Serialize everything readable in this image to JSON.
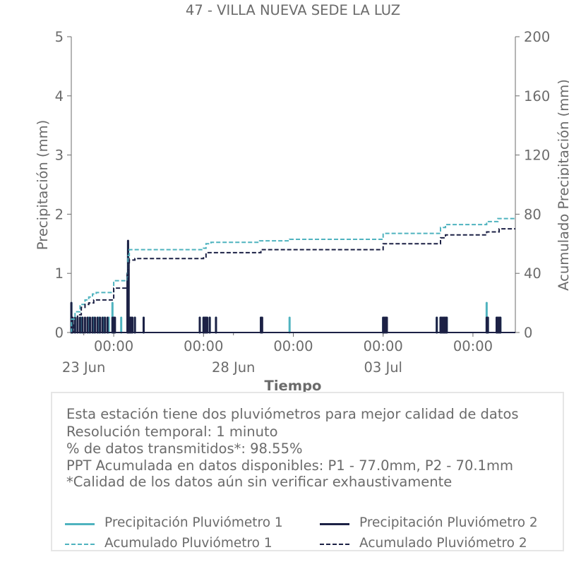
{
  "colors": {
    "p1": "#4fb3bf",
    "p2": "#1c2145",
    "text": "#6b6b6b",
    "axis": "#6b6b6b",
    "box_border": "#e6e6e6"
  },
  "chart_data": {
    "type": "line",
    "title": "47 - VILLA NUEVA SEDE LA LUZ",
    "xlabel": "Tiempo",
    "ylabel": "Precipitación (mm)",
    "y2label": "Acumulado Precipitación (mm)",
    "ylim": [
      0,
      5
    ],
    "y2lim": [
      0,
      200
    ],
    "yticks": [
      0,
      1,
      2,
      3,
      4,
      5
    ],
    "y2ticks": [
      0,
      40,
      80,
      120,
      160,
      200
    ],
    "xlim": [
      "2024-06-22T14:00",
      "2024-07-07T10:00"
    ],
    "x_time_ticks": [
      {
        "t": "2024-06-24T00:00",
        "label": "00:00"
      },
      {
        "t": "2024-06-27T00:00",
        "label": "00:00"
      },
      {
        "t": "2024-06-30T00:00",
        "label": "00:00"
      },
      {
        "t": "2024-07-03T00:00",
        "label": "00:00"
      },
      {
        "t": "2024-07-06T00:00",
        "label": "00:00"
      }
    ],
    "x_date_ticks": [
      {
        "t": "2024-06-23T00:00",
        "label": "23 Jun"
      },
      {
        "t": "2024-06-28T00:00",
        "label": "28 Jun"
      },
      {
        "t": "2024-07-03T00:00",
        "label": "03 Jul"
      }
    ],
    "grid": false,
    "series": [
      {
        "name": "Precipitación Pluviómetro 1",
        "style": "bars",
        "axis": "left",
        "points": [
          [
            "2024-06-22T14:06",
            0.5
          ],
          [
            "2024-06-22T17:00",
            0.25
          ],
          [
            "2024-06-22T22:00",
            0.25
          ],
          [
            "2024-06-23T04:00",
            0.25
          ],
          [
            "2024-06-23T08:00",
            0.25
          ],
          [
            "2024-06-23T12:00",
            0.25
          ],
          [
            "2024-06-23T16:00",
            0.25
          ],
          [
            "2024-06-23T20:00",
            0.25
          ],
          [
            "2024-06-23T23:00",
            0.5
          ],
          [
            "2024-06-24T00:30",
            0.25
          ],
          [
            "2024-06-24T06:00",
            0.25
          ],
          [
            "2024-06-24T11:30",
            1.5
          ],
          [
            "2024-06-24T13:00",
            0.25
          ],
          [
            "2024-06-24T17:00",
            0.25
          ],
          [
            "2024-06-25T00:00",
            0.25
          ],
          [
            "2024-06-26T21:00",
            0.25
          ],
          [
            "2024-06-27T00:00",
            0.25
          ],
          [
            "2024-06-27T02:00",
            0.25
          ],
          [
            "2024-06-27T05:00",
            0.25
          ],
          [
            "2024-06-27T10:00",
            0.25
          ],
          [
            "2024-06-28T22:00",
            0.25
          ],
          [
            "2024-06-29T21:00",
            0.25
          ],
          [
            "2024-07-03T00:00",
            0.25
          ],
          [
            "2024-07-03T02:00",
            0.25
          ],
          [
            "2024-07-04T19:00",
            0.25
          ],
          [
            "2024-07-04T22:00",
            0.25
          ],
          [
            "2024-07-05T01:00",
            0.25
          ],
          [
            "2024-07-05T03:00",
            0.25
          ],
          [
            "2024-07-06T11:00",
            0.5
          ],
          [
            "2024-07-06T12:00",
            0.25
          ],
          [
            "2024-07-06T19:00",
            0.25
          ],
          [
            "2024-07-06T22:00",
            0.25
          ]
        ]
      },
      {
        "name": "Precipitación Pluviómetro 2",
        "style": "bars",
        "axis": "left",
        "points": [
          [
            "2024-06-22T14:02",
            0.5
          ],
          [
            "2024-06-22T15:00",
            0.25
          ],
          [
            "2024-06-22T17:00",
            0.25
          ],
          [
            "2024-06-22T19:00",
            0.25
          ],
          [
            "2024-06-22T21:00",
            0.25
          ],
          [
            "2024-06-22T23:00",
            0.25
          ],
          [
            "2024-06-23T01:00",
            0.25
          ],
          [
            "2024-06-23T03:00",
            0.25
          ],
          [
            "2024-06-23T05:00",
            0.25
          ],
          [
            "2024-06-23T07:00",
            0.25
          ],
          [
            "2024-06-23T09:00",
            0.25
          ],
          [
            "2024-06-23T11:00",
            0.25
          ],
          [
            "2024-06-23T13:00",
            0.25
          ],
          [
            "2024-06-23T15:00",
            0.25
          ],
          [
            "2024-06-23T17:00",
            0.25
          ],
          [
            "2024-06-23T19:00",
            0.25
          ],
          [
            "2024-06-23T23:00",
            0.25
          ],
          [
            "2024-06-24T00:00",
            0.25
          ],
          [
            "2024-06-24T01:00",
            0.25
          ],
          [
            "2024-06-24T11:00",
            1.0
          ],
          [
            "2024-06-24T11:30",
            1.55
          ],
          [
            "2024-06-24T12:00",
            1.25
          ],
          [
            "2024-06-24T13:00",
            0.25
          ],
          [
            "2024-06-24T14:00",
            0.25
          ],
          [
            "2024-06-24T15:00",
            0.25
          ],
          [
            "2024-06-24T17:00",
            0.25
          ],
          [
            "2024-06-25T00:00",
            0.25
          ],
          [
            "2024-06-26T21:00",
            0.25
          ],
          [
            "2024-06-27T00:00",
            0.25
          ],
          [
            "2024-06-27T01:00",
            0.25
          ],
          [
            "2024-06-27T02:00",
            0.25
          ],
          [
            "2024-06-27T03:00",
            0.25
          ],
          [
            "2024-06-27T05:00",
            0.25
          ],
          [
            "2024-06-27T10:00",
            0.25
          ],
          [
            "2024-06-28T22:00",
            0.25
          ],
          [
            "2024-06-28T23:00",
            0.25
          ],
          [
            "2024-07-03T00:00",
            0.25
          ],
          [
            "2024-07-03T01:00",
            0.25
          ],
          [
            "2024-07-03T02:00",
            0.25
          ],
          [
            "2024-07-03T03:00",
            0.25
          ],
          [
            "2024-07-04T19:00",
            0.25
          ],
          [
            "2024-07-04T22:00",
            0.25
          ],
          [
            "2024-07-04T23:00",
            0.25
          ],
          [
            "2024-07-05T00:00",
            0.25
          ],
          [
            "2024-07-05T01:00",
            0.25
          ],
          [
            "2024-07-05T02:00",
            0.25
          ],
          [
            "2024-07-05T03:00",
            0.25
          ],
          [
            "2024-07-06T11:00",
            0.25
          ],
          [
            "2024-07-06T12:00",
            0.25
          ],
          [
            "2024-07-06T19:00",
            0.25
          ],
          [
            "2024-07-06T20:00",
            0.25
          ],
          [
            "2024-07-06T21:00",
            0.25
          ],
          [
            "2024-07-06T22:00",
            0.25
          ]
        ]
      },
      {
        "name": "Acumulado Pluviómetro 1",
        "style": "step-dashed",
        "axis": "right",
        "points": [
          [
            "2024-06-22T14:00",
            0
          ],
          [
            "2024-06-22T14:10",
            9
          ],
          [
            "2024-06-22T17:00",
            14
          ],
          [
            "2024-06-22T21:00",
            19
          ],
          [
            "2024-06-23T01:00",
            22
          ],
          [
            "2024-06-23T04:00",
            24
          ],
          [
            "2024-06-23T07:00",
            26
          ],
          [
            "2024-06-23T10:00",
            27
          ],
          [
            "2024-06-24T00:00",
            35
          ],
          [
            "2024-06-24T11:00",
            40
          ],
          [
            "2024-06-24T11:30",
            52
          ],
          [
            "2024-06-24T12:30",
            56
          ],
          [
            "2024-06-27T00:00",
            57
          ],
          [
            "2024-06-27T02:00",
            60
          ],
          [
            "2024-06-27T06:00",
            61
          ],
          [
            "2024-06-28T21:00",
            62
          ],
          [
            "2024-06-29T21:00",
            63
          ],
          [
            "2024-07-03T00:00",
            67
          ],
          [
            "2024-07-04T22:00",
            71
          ],
          [
            "2024-07-05T02:00",
            73
          ],
          [
            "2024-07-06T11:00",
            75
          ],
          [
            "2024-07-06T20:00",
            77
          ],
          [
            "2024-07-07T10:00",
            77
          ]
        ]
      },
      {
        "name": "Acumulado Pluviómetro 2",
        "style": "step-dashed",
        "axis": "right",
        "points": [
          [
            "2024-06-22T14:00",
            0
          ],
          [
            "2024-06-22T16:00",
            5
          ],
          [
            "2024-06-22T19:00",
            12
          ],
          [
            "2024-06-22T22:00",
            17
          ],
          [
            "2024-06-23T01:00",
            19
          ],
          [
            "2024-06-23T04:00",
            20
          ],
          [
            "2024-06-23T08:00",
            22
          ],
          [
            "2024-06-24T00:00",
            30
          ],
          [
            "2024-06-24T11:00",
            35
          ],
          [
            "2024-06-24T11:30",
            46
          ],
          [
            "2024-06-24T12:30",
            49
          ],
          [
            "2024-06-24T17:00",
            50
          ],
          [
            "2024-06-27T00:00",
            51
          ],
          [
            "2024-06-27T02:00",
            54
          ],
          [
            "2024-06-28T22:00",
            56
          ],
          [
            "2024-07-03T00:00",
            60
          ],
          [
            "2024-07-04T22:00",
            64
          ],
          [
            "2024-07-05T02:00",
            66
          ],
          [
            "2024-07-06T11:00",
            68
          ],
          [
            "2024-07-06T21:00",
            70.1
          ],
          [
            "2024-07-07T10:00",
            70.1
          ]
        ]
      }
    ]
  },
  "info": {
    "line1": "Esta estación tiene dos pluviómetros para mejor calidad de datos",
    "line2": "Resolución temporal: 1 minuto",
    "line3": "% de datos transmitidos*: 98.55%",
    "line4": "PPT Acumulada en datos disponibles: P1 - 77.0mm, P2 - 70.1mm",
    "line5": "*Calidad de los datos aún sin verificar exhaustivamente"
  },
  "legend": {
    "p1_rain": "Precipitación Pluviómetro 1",
    "p2_rain": "Precipitación Pluviómetro 2",
    "p1_acc": "Acumulado Pluviómetro 1",
    "p2_acc": "Acumulado Pluviómetro 2"
  }
}
